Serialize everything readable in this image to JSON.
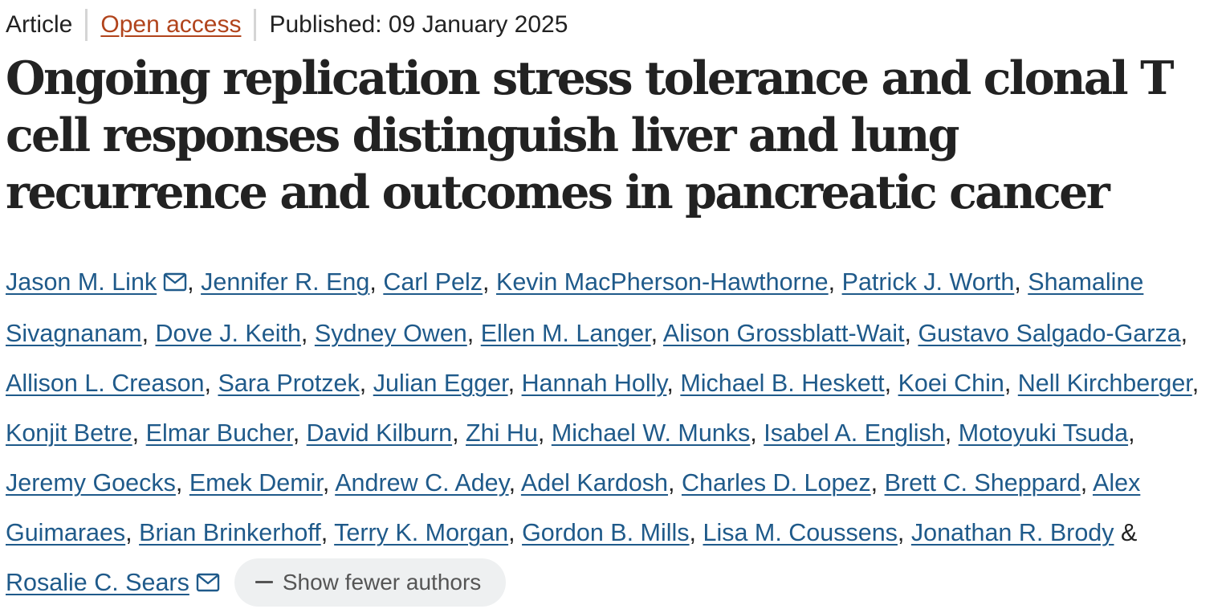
{
  "meta": {
    "type": "Article",
    "access": "Open access",
    "published": "Published: 09 January 2025"
  },
  "title": "Ongoing replication stress tolerance and clonal T cell responses distinguish liver and lung recurrence and outcomes in pancreatic cancer",
  "authors": [
    {
      "name": "Jason M. Link",
      "email": true,
      "sep": ", "
    },
    {
      "name": "Jennifer R. Eng",
      "email": false,
      "sep": ", "
    },
    {
      "name": "Carl Pelz",
      "email": false,
      "sep": ", "
    },
    {
      "name": "Kevin MacPherson-Hawthorne",
      "email": false,
      "sep": ", "
    },
    {
      "name": "Patrick J. Worth",
      "email": false,
      "sep": ", "
    },
    {
      "name": "Shamaline Sivagnanam",
      "email": false,
      "sep": ", "
    },
    {
      "name": "Dove J. Keith",
      "email": false,
      "sep": ", "
    },
    {
      "name": "Sydney Owen",
      "email": false,
      "sep": ", "
    },
    {
      "name": "Ellen M. Langer",
      "email": false,
      "sep": ", "
    },
    {
      "name": "Alison Grossblatt-Wait",
      "email": false,
      "sep": ", "
    },
    {
      "name": "Gustavo Salgado-Garza",
      "email": false,
      "sep": ", "
    },
    {
      "name": "Allison L. Creason",
      "email": false,
      "sep": ", "
    },
    {
      "name": "Sara Protzek",
      "email": false,
      "sep": ", "
    },
    {
      "name": "Julian Egger",
      "email": false,
      "sep": ", "
    },
    {
      "name": "Hannah Holly",
      "email": false,
      "sep": ", "
    },
    {
      "name": "Michael B. Heskett",
      "email": false,
      "sep": ", "
    },
    {
      "name": "Koei Chin",
      "email": false,
      "sep": ", "
    },
    {
      "name": "Nell Kirchberger",
      "email": false,
      "sep": ", "
    },
    {
      "name": "Konjit Betre",
      "email": false,
      "sep": ", "
    },
    {
      "name": "Elmar Bucher",
      "email": false,
      "sep": ", "
    },
    {
      "name": "David Kilburn",
      "email": false,
      "sep": ", "
    },
    {
      "name": "Zhi Hu",
      "email": false,
      "sep": ", "
    },
    {
      "name": "Michael W. Munks",
      "email": false,
      "sep": ", "
    },
    {
      "name": "Isabel A. English",
      "email": false,
      "sep": ", "
    },
    {
      "name": "Motoyuki Tsuda",
      "email": false,
      "sep": ", "
    },
    {
      "name": "Jeremy Goecks",
      "email": false,
      "sep": ", "
    },
    {
      "name": "Emek Demir",
      "email": false,
      "sep": ", "
    },
    {
      "name": "Andrew C. Adey",
      "email": false,
      "sep": ", "
    },
    {
      "name": "Adel Kardosh",
      "email": false,
      "sep": ", "
    },
    {
      "name": "Charles D. Lopez",
      "email": false,
      "sep": ", "
    },
    {
      "name": "Brett C. Sheppard",
      "email": false,
      "sep": ", "
    },
    {
      "name": "Alex Guimaraes",
      "email": false,
      "sep": ", "
    },
    {
      "name": "Brian Brinkerhoff",
      "email": false,
      "sep": ", "
    },
    {
      "name": "Terry K. Morgan",
      "email": false,
      "sep": ", "
    },
    {
      "name": "Gordon B. Mills",
      "email": false,
      "sep": ", "
    },
    {
      "name": "Lisa M. Coussens",
      "email": false,
      "sep": ", "
    },
    {
      "name": "Jonathan R. Brody",
      "email": false,
      "sep": " & "
    },
    {
      "name": "Rosalie C. Sears",
      "email": true,
      "sep": ""
    }
  ],
  "toggle": {
    "label": "Show fewer authors",
    "icon": "minus-icon"
  },
  "colors": {
    "link": "#1f5a8a",
    "access": "#b1441c",
    "button_bg": "#eef0f1"
  }
}
